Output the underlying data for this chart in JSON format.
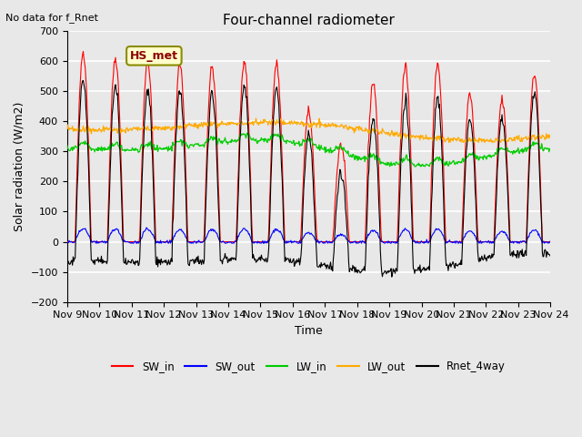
{
  "title": "Four-channel radiometer",
  "subtitle": "No data for f_Rnet",
  "xlabel": "Time",
  "ylabel": "Solar radiation (W/m2)",
  "ylim": [
    -200,
    700
  ],
  "yticks": [
    -200,
    -100,
    0,
    100,
    200,
    300,
    400,
    500,
    600,
    700
  ],
  "station_label": "HS_met",
  "legend": [
    "SW_in",
    "SW_out",
    "LW_in",
    "LW_out",
    "Rnet_4way"
  ],
  "colors": {
    "SW_in": "#ff0000",
    "SW_out": "#0000ff",
    "LW_in": "#00cc00",
    "LW_out": "#ffaa00",
    "Rnet_4way": "#000000"
  },
  "x_tick_labels": [
    "Nov 9",
    "Nov 10",
    "Nov 11",
    "Nov 12",
    "Nov 13",
    "Nov 14",
    "Nov 15",
    "Nov 16",
    "Nov 17",
    "Nov 18",
    "Nov 19",
    "Nov 20",
    "Nov 21",
    "Nov 22",
    "Nov 23",
    "Nov 24"
  ],
  "background_color": "#e8e8e8",
  "plot_bg_color": "#e8e8e8",
  "grid_color": "#ffffff",
  "n_days": 15,
  "hours_per_day": 24,
  "dt": 0.5
}
